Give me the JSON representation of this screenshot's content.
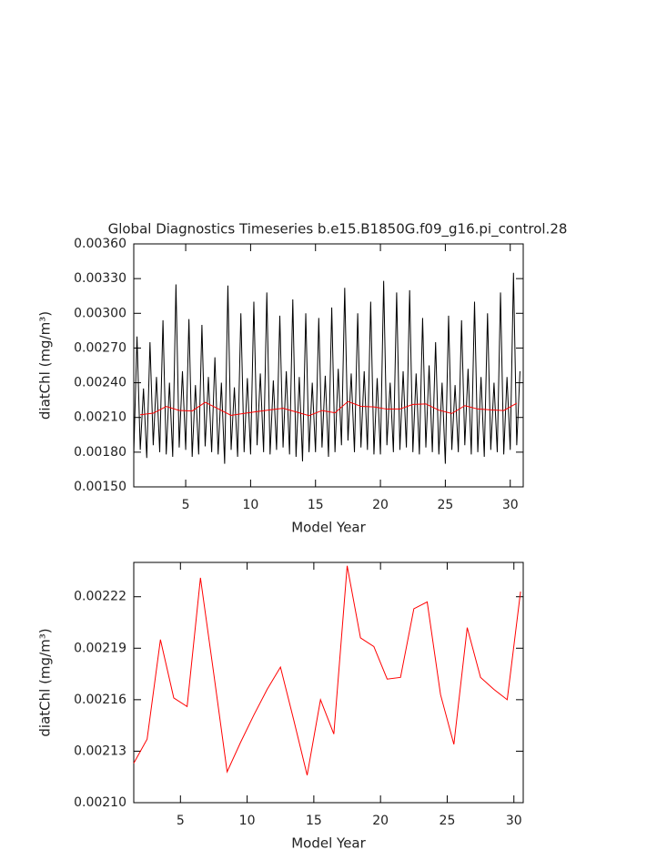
{
  "chart_data": [
    {
      "type": "line",
      "title": "Global Diagnostics Timeseries b.e15.B1850G.f09_g16.pi_control.28",
      "xlabel": "Model Year",
      "ylabel": "diatChl (mg/m³)",
      "xlim": [
        1,
        31
      ],
      "xticks": [
        5,
        10,
        15,
        20,
        25,
        30
      ],
      "ylim": [
        0.0015,
        0.0036
      ],
      "yticks": [
        {
          "value": 0.0015,
          "label": "0.00150"
        },
        {
          "value": 0.0018,
          "label": "0.00180"
        },
        {
          "value": 0.0021,
          "label": "0.00210"
        },
        {
          "value": 0.0024,
          "label": "0.00240"
        },
        {
          "value": 0.0027,
          "label": "0.00270"
        },
        {
          "value": 0.003,
          "label": "0.00300"
        },
        {
          "value": 0.0033,
          "label": "0.00330"
        },
        {
          "value": 0.0036,
          "label": "0.00360"
        }
      ],
      "series": [
        {
          "color": "#000000",
          "x": [
            1,
            1.25,
            1.5,
            1.75,
            2,
            2.25,
            2.5,
            2.75,
            3,
            3.25,
            3.5,
            3.75,
            4,
            4.25,
            4.5,
            4.75,
            5,
            5.25,
            5.5,
            5.75,
            6,
            6.25,
            6.5,
            6.75,
            7,
            7.25,
            7.5,
            7.75,
            8,
            8.25,
            8.5,
            8.75,
            9,
            9.25,
            9.5,
            9.75,
            10,
            10.25,
            10.5,
            10.75,
            11,
            11.25,
            11.5,
            11.75,
            12,
            12.25,
            12.5,
            12.75,
            13,
            13.25,
            13.5,
            13.75,
            14,
            14.25,
            14.5,
            14.75,
            15,
            15.25,
            15.5,
            15.75,
            16,
            16.25,
            16.5,
            16.75,
            17,
            17.25,
            17.5,
            17.75,
            18,
            18.25,
            18.5,
            18.75,
            19,
            19.25,
            19.5,
            19.75,
            20,
            20.25,
            20.5,
            20.75,
            21,
            21.25,
            21.5,
            21.75,
            22,
            22.25,
            22.5,
            22.75,
            23,
            23.25,
            23.5,
            23.75,
            24,
            24.25,
            24.5,
            24.75,
            25,
            25.25,
            25.5,
            25.75,
            26,
            26.25,
            26.5,
            26.75,
            27,
            27.25,
            27.5,
            27.75,
            28,
            28.25,
            28.5,
            28.75,
            29,
            29.25,
            29.5,
            29.75,
            30,
            30.25,
            30.5,
            30.75
          ],
          "values": [
            0.00178,
            0.0028,
            0.00182,
            0.00235,
            0.00175,
            0.00275,
            0.00186,
            0.00245,
            0.0018,
            0.00294,
            0.00178,
            0.0024,
            0.00176,
            0.00325,
            0.00184,
            0.0025,
            0.00182,
            0.00295,
            0.00176,
            0.00238,
            0.00178,
            0.0029,
            0.00185,
            0.00245,
            0.0018,
            0.00262,
            0.00178,
            0.0024,
            0.0017,
            0.00324,
            0.00182,
            0.00236,
            0.00176,
            0.003,
            0.0018,
            0.00244,
            0.00178,
            0.0031,
            0.00186,
            0.00248,
            0.0018,
            0.00318,
            0.00178,
            0.00242,
            0.00182,
            0.00298,
            0.00184,
            0.0025,
            0.00178,
            0.00312,
            0.00176,
            0.00245,
            0.00172,
            0.003,
            0.0018,
            0.0024,
            0.0018,
            0.00296,
            0.00184,
            0.00246,
            0.00176,
            0.00305,
            0.0018,
            0.00252,
            0.00186,
            0.00322,
            0.0019,
            0.00248,
            0.0018,
            0.003,
            0.00184,
            0.0025,
            0.00182,
            0.0031,
            0.00178,
            0.00244,
            0.00178,
            0.00328,
            0.00186,
            0.0024,
            0.0018,
            0.00318,
            0.00182,
            0.0025,
            0.00184,
            0.0032,
            0.0018,
            0.00248,
            0.00178,
            0.00296,
            0.00184,
            0.00255,
            0.0018,
            0.00275,
            0.00178,
            0.0024,
            0.0017,
            0.00298,
            0.00182,
            0.00238,
            0.0018,
            0.00294,
            0.00186,
            0.00252,
            0.00178,
            0.0031,
            0.0018,
            0.00245,
            0.00176,
            0.003,
            0.00182,
            0.0024,
            0.0018,
            0.00318,
            0.00178,
            0.00245,
            0.00182,
            0.00335,
            0.00186,
            0.0025
          ]
        },
        {
          "color": "#ff0000",
          "x": [
            1.5,
            2.5,
            3.5,
            4.5,
            5.5,
            6.5,
            7.5,
            8.5,
            9.5,
            10.5,
            11.5,
            12.5,
            13.5,
            14.5,
            15.5,
            16.5,
            17.5,
            18.5,
            19.5,
            20.5,
            21.5,
            22.5,
            23.5,
            24.5,
            25.5,
            26.5,
            27.5,
            28.5,
            29.5,
            30.5
          ],
          "values": [
            0.002123,
            0.002137,
            0.002195,
            0.002161,
            0.002156,
            0.002231,
            0.002175,
            0.002118,
            0.002135,
            0.002151,
            0.002166,
            0.002179,
            0.002148,
            0.002116,
            0.00216,
            0.00214,
            0.002238,
            0.002196,
            0.002191,
            0.002172,
            0.002173,
            0.002213,
            0.002217,
            0.002163,
            0.002134,
            0.002202,
            0.002173,
            0.002166,
            0.00216,
            0.002223
          ]
        }
      ]
    },
    {
      "type": "line",
      "xlabel": "Model Year",
      "ylabel": "diatChl (mg/m³)",
      "xlim": [
        1.5,
        30.7
      ],
      "xticks": [
        5,
        10,
        15,
        20,
        25,
        30
      ],
      "ylim": [
        0.0021,
        0.00224
      ],
      "yticks": [
        {
          "value": 0.0021,
          "label": "0.00210"
        },
        {
          "value": 0.00213,
          "label": "0.00213"
        },
        {
          "value": 0.00216,
          "label": "0.00216"
        },
        {
          "value": 0.00219,
          "label": "0.00219"
        },
        {
          "value": 0.00222,
          "label": "0.00222"
        }
      ],
      "series": [
        {
          "color": "#ff0000",
          "x": [
            1.5,
            2.5,
            3.5,
            4.5,
            5.5,
            6.5,
            7.5,
            8.5,
            9.5,
            10.5,
            11.5,
            12.5,
            13.5,
            14.5,
            15.5,
            16.5,
            17.5,
            18.5,
            19.5,
            20.5,
            21.5,
            22.5,
            23.5,
            24.5,
            25.5,
            26.5,
            27.5,
            28.5,
            29.5,
            30.5
          ],
          "values": [
            0.002123,
            0.002137,
            0.002195,
            0.002161,
            0.002156,
            0.002231,
            0.002175,
            0.002118,
            0.002135,
            0.002151,
            0.002166,
            0.002179,
            0.002148,
            0.002116,
            0.00216,
            0.00214,
            0.002238,
            0.002196,
            0.002191,
            0.002172,
            0.002173,
            0.002213,
            0.002217,
            0.002163,
            0.002134,
            0.002202,
            0.002173,
            0.002166,
            0.00216,
            0.002223
          ]
        }
      ]
    }
  ]
}
